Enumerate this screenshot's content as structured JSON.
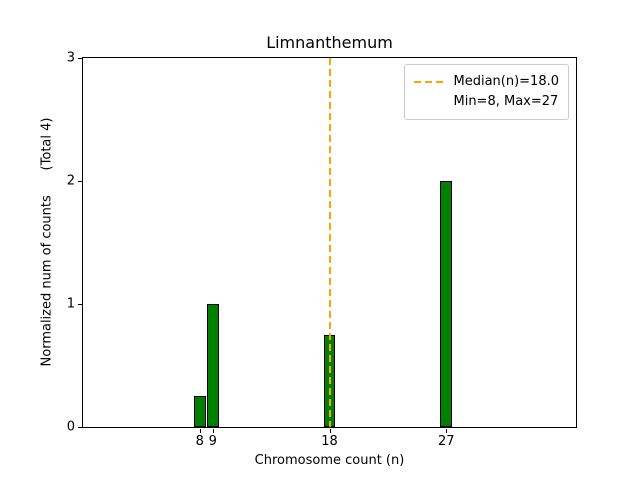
{
  "chart_data": {
    "type": "bar",
    "title": "Limnanthemum",
    "xlabel": "Chromosome count (n)",
    "ylabel": "Normalized num of counts      (Total 4)",
    "x": [
      8,
      9,
      18,
      27
    ],
    "values": [
      0.25,
      1.0,
      0.75,
      2.0
    ],
    "bar_width": 0.9,
    "xlim": [
      -1,
      37
    ],
    "ylim": [
      0,
      3
    ],
    "xticks": [
      8,
      9,
      18,
      27
    ],
    "yticks": [
      0,
      1,
      2,
      3
    ],
    "median": 18.0,
    "min": 8,
    "max": 27,
    "grid": false,
    "colors": {
      "bar_fill": "#008000",
      "bar_edge": "#000000",
      "median_line": "#ffa500",
      "spine": "#000000",
      "legend_border": "#cccccc"
    },
    "legend": {
      "position": "upper right",
      "items": [
        {
          "label": "Median(n)=18.0",
          "swatch": "dashed-line"
        },
        {
          "label": "Min=8, Max=27",
          "swatch": "none"
        }
      ]
    }
  }
}
